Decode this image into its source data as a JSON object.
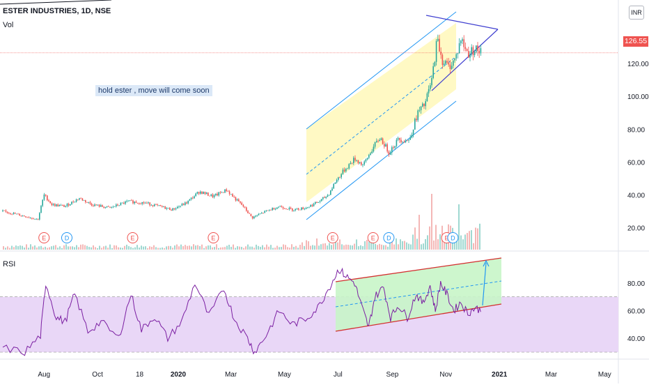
{
  "header": {
    "title": "ESTER INDUSTRIES, 1D, NSE",
    "vol_label": "Vol",
    "rsi_label": "RSI",
    "currency": "INR"
  },
  "annotation": {
    "note": "hold ester , move will come soon"
  },
  "last_price": "126.55",
  "event_markers": [
    {
      "label": "E",
      "color": "#ef5350",
      "date": "2019-08-01"
    },
    {
      "label": "D",
      "color": "#2196f3",
      "date": "2019-08-27"
    },
    {
      "label": "E",
      "color": "#ef5350",
      "date": "2019-11-10"
    },
    {
      "label": "E",
      "color": "#ef5350",
      "date": "2020-02-10"
    },
    {
      "label": "E",
      "color": "#ef5350",
      "date": "2020-06-25"
    },
    {
      "label": "E",
      "color": "#ef5350",
      "date": "2020-08-10"
    },
    {
      "label": "D",
      "color": "#2196f3",
      "date": "2020-08-28"
    },
    {
      "label": "E",
      "color": "#ef5350",
      "date": "2020-11-02"
    },
    {
      "label": "D",
      "color": "#2196f3",
      "date": "2020-11-09"
    }
  ],
  "colors": {
    "up": "#26a69a",
    "down": "#ef5350",
    "rsi_line": "#7b1fa2",
    "rsi_band": "#e9d7f7",
    "channel_fill": "#fff9c4",
    "rsi_channel_fill": "#c8f5c8",
    "channel_line": "#2196f3",
    "rsi_channel_line": "#d32f2f",
    "triangle": "#3f3fd0"
  },
  "chart_data": [
    {
      "type": "candlestick",
      "title": "ESTER INDUSTRIES, 1D, NSE",
      "y_ticks": [
        "20.00",
        "40.00",
        "60.00",
        "80.00",
        "100.00",
        "120.00"
      ],
      "x_ticks": [
        "Aug",
        "Oct",
        "18",
        "2020",
        "Mar",
        "May",
        "Jul",
        "Sep",
        "Nov",
        "2021",
        "Mar",
        "May"
      ],
      "ylim": [
        10,
        146
      ],
      "x_axis": {
        "start": "2019-06-15",
        "end": "2021-05-15"
      },
      "close_series": [
        {
          "date": "2019-06-15",
          "close": 30
        },
        {
          "date": "2019-07-10",
          "close": 27
        },
        {
          "date": "2019-07-25",
          "close": 25
        },
        {
          "date": "2019-08-01",
          "close": 40
        },
        {
          "date": "2019-08-10",
          "close": 34
        },
        {
          "date": "2019-08-25",
          "close": 33
        },
        {
          "date": "2019-09-10",
          "close": 38
        },
        {
          "date": "2019-09-25",
          "close": 34
        },
        {
          "date": "2019-10-15",
          "close": 32
        },
        {
          "date": "2019-11-05",
          "close": 36
        },
        {
          "date": "2019-11-25",
          "close": 35
        },
        {
          "date": "2019-12-10",
          "close": 33
        },
        {
          "date": "2019-12-25",
          "close": 31
        },
        {
          "date": "2020-01-10",
          "close": 35
        },
        {
          "date": "2020-01-25",
          "close": 42
        },
        {
          "date": "2020-02-10",
          "close": 39
        },
        {
          "date": "2020-02-25",
          "close": 43
        },
        {
          "date": "2020-03-05",
          "close": 38
        },
        {
          "date": "2020-03-15",
          "close": 33
        },
        {
          "date": "2020-03-25",
          "close": 26
        },
        {
          "date": "2020-04-10",
          "close": 30
        },
        {
          "date": "2020-04-25",
          "close": 33
        },
        {
          "date": "2020-05-10",
          "close": 31
        },
        {
          "date": "2020-05-25",
          "close": 32
        },
        {
          "date": "2020-06-10",
          "close": 36
        },
        {
          "date": "2020-06-20",
          "close": 40
        },
        {
          "date": "2020-06-28",
          "close": 48
        },
        {
          "date": "2020-07-08",
          "close": 55
        },
        {
          "date": "2020-07-20",
          "close": 62
        },
        {
          "date": "2020-07-30",
          "close": 58
        },
        {
          "date": "2020-08-08",
          "close": 67
        },
        {
          "date": "2020-08-18",
          "close": 75
        },
        {
          "date": "2020-08-28",
          "close": 66
        },
        {
          "date": "2020-09-08",
          "close": 74
        },
        {
          "date": "2020-09-20",
          "close": 73
        },
        {
          "date": "2020-09-30",
          "close": 90
        },
        {
          "date": "2020-10-08",
          "close": 95
        },
        {
          "date": "2020-10-16",
          "close": 110
        },
        {
          "date": "2020-10-22",
          "close": 135
        },
        {
          "date": "2020-10-28",
          "close": 122
        },
        {
          "date": "2020-11-04",
          "close": 118
        },
        {
          "date": "2020-11-12",
          "close": 123
        },
        {
          "date": "2020-11-18",
          "close": 135
        },
        {
          "date": "2020-11-26",
          "close": 126
        },
        {
          "date": "2020-12-04",
          "close": 129
        },
        {
          "date": "2020-12-12",
          "close": 126.55
        }
      ]
    },
    {
      "type": "line",
      "title": "RSI",
      "y_ticks": [
        "40.00",
        "60.00",
        "80.00"
      ],
      "ylim": [
        25,
        97
      ],
      "band": [
        30,
        70
      ],
      "series": [
        {
          "values": [
            {
              "date": "2019-06-15",
              "v": 33
            },
            {
              "date": "2019-07-10",
              "v": 30
            },
            {
              "date": "2019-07-28",
              "v": 42
            },
            {
              "date": "2019-08-03",
              "v": 80
            },
            {
              "date": "2019-08-15",
              "v": 55
            },
            {
              "date": "2019-08-25",
              "v": 52
            },
            {
              "date": "2019-09-05",
              "v": 72
            },
            {
              "date": "2019-09-20",
              "v": 45
            },
            {
              "date": "2019-10-05",
              "v": 52
            },
            {
              "date": "2019-10-25",
              "v": 40
            },
            {
              "date": "2019-11-08",
              "v": 72
            },
            {
              "date": "2019-11-20",
              "v": 46
            },
            {
              "date": "2019-12-05",
              "v": 56
            },
            {
              "date": "2019-12-20",
              "v": 40
            },
            {
              "date": "2020-01-05",
              "v": 52
            },
            {
              "date": "2020-01-20",
              "v": 80
            },
            {
              "date": "2020-02-05",
              "v": 56
            },
            {
              "date": "2020-02-22",
              "v": 76
            },
            {
              "date": "2020-03-05",
              "v": 54
            },
            {
              "date": "2020-03-20",
              "v": 40
            },
            {
              "date": "2020-03-28",
              "v": 30
            },
            {
              "date": "2020-04-10",
              "v": 42
            },
            {
              "date": "2020-04-25",
              "v": 60
            },
            {
              "date": "2020-05-10",
              "v": 50
            },
            {
              "date": "2020-05-25",
              "v": 54
            },
            {
              "date": "2020-06-08",
              "v": 62
            },
            {
              "date": "2020-06-22",
              "v": 78
            },
            {
              "date": "2020-07-02",
              "v": 90
            },
            {
              "date": "2020-07-10",
              "v": 85
            },
            {
              "date": "2020-07-20",
              "v": 80
            },
            {
              "date": "2020-07-28",
              "v": 63
            },
            {
              "date": "2020-08-05",
              "v": 48
            },
            {
              "date": "2020-08-12",
              "v": 70
            },
            {
              "date": "2020-08-22",
              "v": 77
            },
            {
              "date": "2020-08-30",
              "v": 55
            },
            {
              "date": "2020-09-08",
              "v": 64
            },
            {
              "date": "2020-09-18",
              "v": 55
            },
            {
              "date": "2020-09-28",
              "v": 72
            },
            {
              "date": "2020-10-06",
              "v": 65
            },
            {
              "date": "2020-10-14",
              "v": 78
            },
            {
              "date": "2020-10-20",
              "v": 60
            },
            {
              "date": "2020-10-26",
              "v": 80
            },
            {
              "date": "2020-11-02",
              "v": 72
            },
            {
              "date": "2020-11-10",
              "v": 60
            },
            {
              "date": "2020-11-18",
              "v": 66
            },
            {
              "date": "2020-11-26",
              "v": 58
            },
            {
              "date": "2020-12-04",
              "v": 62
            },
            {
              "date": "2020-12-12",
              "v": 60
            }
          ]
        }
      ]
    }
  ]
}
